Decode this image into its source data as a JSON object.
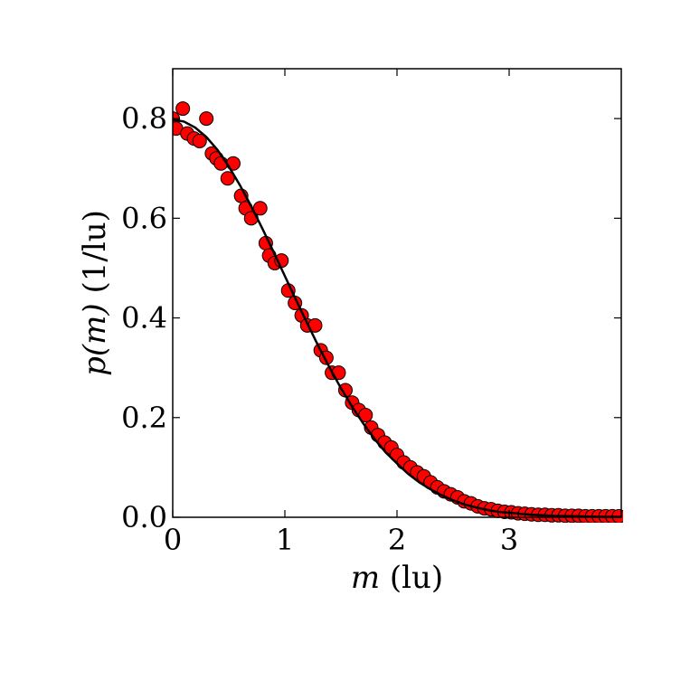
{
  "chart_data": {
    "type": "scatter",
    "xlabel": {
      "symbol": "m",
      "unit": " (lu)"
    },
    "ylabel": {
      "symbol": "p(m)",
      "unit": " (1/lu)"
    },
    "xlim": [
      0,
      4
    ],
    "ylim": [
      0,
      0.9
    ],
    "xticks": [
      {
        "value": 0,
        "label": "0"
      },
      {
        "value": 1,
        "label": "1"
      },
      {
        "value": 2,
        "label": "2"
      },
      {
        "value": 3,
        "label": "3"
      }
    ],
    "yticks": [
      {
        "value": 0.0,
        "label": "0.0"
      },
      {
        "value": 0.2,
        "label": "0.2"
      },
      {
        "value": 0.4,
        "label": "0.4"
      },
      {
        "value": 0.6,
        "label": "0.6"
      },
      {
        "value": 0.8,
        "label": "0.8"
      }
    ],
    "colors": {
      "points": "#ff0000",
      "point_edge": "#000000",
      "curve": "#000000"
    },
    "curve": {
      "x": [
        0,
        0.1,
        0.2,
        0.3,
        0.4,
        0.5,
        0.6,
        0.7,
        0.8,
        0.9,
        1.0,
        1.1,
        1.2,
        1.3,
        1.4,
        1.5,
        1.6,
        1.7,
        1.8,
        1.9,
        2.0,
        2.1,
        2.2,
        2.3,
        2.4,
        2.5,
        2.6,
        2.7,
        2.8,
        2.9,
        3.0,
        3.2,
        3.4,
        3.6,
        3.8,
        4.0
      ],
      "y": [
        0.798,
        0.794,
        0.782,
        0.763,
        0.737,
        0.704,
        0.666,
        0.624,
        0.579,
        0.532,
        0.484,
        0.436,
        0.389,
        0.343,
        0.3,
        0.259,
        0.222,
        0.188,
        0.157,
        0.13,
        0.108,
        0.087,
        0.07,
        0.056,
        0.044,
        0.034,
        0.026,
        0.02,
        0.015,
        0.011,
        0.009,
        0.005,
        0.003,
        0.002,
        0.001,
        0.001
      ]
    },
    "points": {
      "x": [
        0.0,
        0.03,
        0.09,
        0.13,
        0.19,
        0.24,
        0.3,
        0.35,
        0.39,
        0.43,
        0.49,
        0.54,
        0.61,
        0.65,
        0.7,
        0.78,
        0.83,
        0.86,
        0.91,
        0.97,
        1.03,
        1.09,
        1.15,
        1.2,
        1.27,
        1.32,
        1.37,
        1.42,
        1.48,
        1.54,
        1.6,
        1.66,
        1.72,
        1.77,
        1.83,
        1.89,
        1.95,
        2.0,
        2.06,
        2.12,
        2.18,
        2.24,
        2.3,
        2.36,
        2.42,
        2.48,
        2.54,
        2.6,
        2.66,
        2.72,
        2.78,
        2.84,
        2.9,
        2.96,
        3.02,
        3.08,
        3.14,
        3.2,
        3.26,
        3.32,
        3.38,
        3.44,
        3.5,
        3.56,
        3.62,
        3.68,
        3.74,
        3.8,
        3.86,
        3.92,
        3.98
      ],
      "y": [
        0.8,
        0.78,
        0.82,
        0.77,
        0.76,
        0.755,
        0.8,
        0.73,
        0.72,
        0.71,
        0.68,
        0.71,
        0.645,
        0.62,
        0.6,
        0.62,
        0.55,
        0.525,
        0.51,
        0.515,
        0.455,
        0.43,
        0.405,
        0.385,
        0.385,
        0.335,
        0.32,
        0.29,
        0.29,
        0.255,
        0.23,
        0.215,
        0.205,
        0.18,
        0.165,
        0.15,
        0.14,
        0.125,
        0.11,
        0.1,
        0.09,
        0.082,
        0.07,
        0.06,
        0.052,
        0.046,
        0.04,
        0.032,
        0.028,
        0.022,
        0.018,
        0.016,
        0.013,
        0.011,
        0.01,
        0.008,
        0.007,
        0.006,
        0.005,
        0.005,
        0.004,
        0.004,
        0.003,
        0.003,
        0.003,
        0.002,
        0.002,
        0.002,
        0.002,
        0.002,
        0.002
      ]
    }
  }
}
